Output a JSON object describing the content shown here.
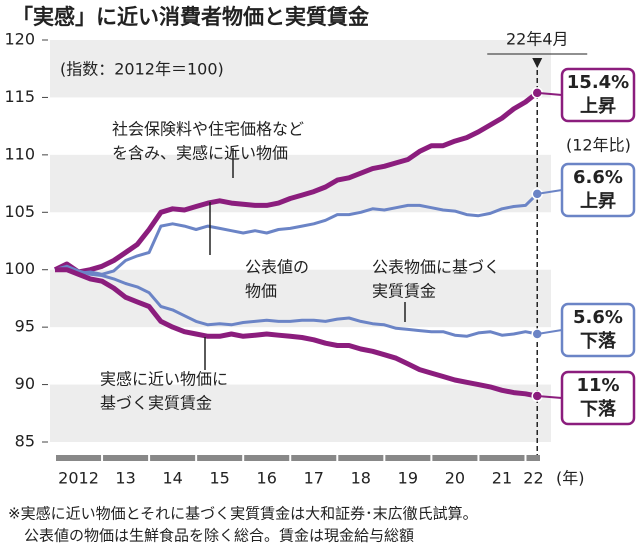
{
  "chart_data": {
    "type": "line",
    "title": "「実感」に近い消費者物価と実質賃金",
    "subtitle": "(指数：2012年＝100)",
    "x": [
      2012,
      2012.25,
      2012.5,
      2012.75,
      2013,
      2013.25,
      2013.5,
      2013.75,
      2014,
      2014.25,
      2014.5,
      2014.75,
      2015,
      2015.25,
      2015.5,
      2015.75,
      2016,
      2016.25,
      2016.5,
      2016.75,
      2017,
      2017.25,
      2017.5,
      2017.75,
      2018,
      2018.25,
      2018.5,
      2018.75,
      2019,
      2019.25,
      2019.5,
      2019.75,
      2020,
      2020.25,
      2020.5,
      2020.75,
      2021,
      2021.25,
      2021.5,
      2021.75,
      2022,
      2022.25
    ],
    "xlim": [
      2012,
      2022.33
    ],
    "xticks": [
      {
        "value": 2012.5,
        "label": "2012"
      },
      {
        "value": 2013.5,
        "label": "13"
      },
      {
        "value": 2014.5,
        "label": "14"
      },
      {
        "value": 2015.5,
        "label": "15"
      },
      {
        "value": 2016.5,
        "label": "16"
      },
      {
        "value": 2017.5,
        "label": "17"
      },
      {
        "value": 2018.5,
        "label": "18"
      },
      {
        "value": 2019.5,
        "label": "19"
      },
      {
        "value": 2020.5,
        "label": "20"
      },
      {
        "value": 2021.5,
        "label": "21"
      },
      {
        "value": 2022.17,
        "label": "22"
      }
    ],
    "x_unit": "(年)",
    "ylim": [
      85,
      120
    ],
    "yticks": [
      85,
      90,
      95,
      100,
      105,
      110,
      115,
      120
    ],
    "grid": "bands",
    "marker": {
      "x": 2022.25,
      "label": "22年4月"
    },
    "base_note": "(12年比)",
    "series": [
      {
        "color": "#8b1d7d",
        "label": [
          "社会保険料や住宅価格など",
          "を含み、実感に近い物価"
        ],
        "end_label": [
          "15.4%",
          "上昇"
        ],
        "values": [
          100,
          100.5,
          99.8,
          100,
          100.3,
          100.8,
          101.5,
          102.2,
          103.5,
          105,
          105.3,
          105.2,
          105.5,
          105.8,
          106,
          105.8,
          105.7,
          105.6,
          105.6,
          105.8,
          106.2,
          106.5,
          106.8,
          107.2,
          107.8,
          108,
          108.4,
          108.8,
          109,
          109.3,
          109.6,
          110.3,
          110.8,
          110.8,
          111.2,
          111.5,
          112,
          112.6,
          113.2,
          114,
          114.6,
          115.4
        ]
      },
      {
        "color": "#6b84c6",
        "label": [
          "公表値の",
          "物価"
        ],
        "end_label": [
          "6.6%",
          "上昇"
        ],
        "values": [
          100,
          100,
          99.7,
          99.8,
          99.6,
          99.9,
          100.8,
          101.2,
          101.5,
          103.8,
          104,
          103.8,
          103.5,
          103.8,
          103.6,
          103.4,
          103.2,
          103.4,
          103.2,
          103.5,
          103.6,
          103.8,
          104,
          104.3,
          104.8,
          104.8,
          105,
          105.3,
          105.2,
          105.4,
          105.6,
          105.6,
          105.4,
          105.2,
          105.1,
          104.8,
          104.7,
          104.9,
          105.3,
          105.5,
          105.6,
          106.6
        ]
      },
      {
        "color": "#6b84c6",
        "label": [
          "公表物価に基づく",
          "実質賃金"
        ],
        "end_label": [
          "5.6%",
          "下落"
        ],
        "values": [
          100,
          100.3,
          99.9,
          99.6,
          99.5,
          99.2,
          98.8,
          98.5,
          98,
          96.8,
          96.5,
          96,
          95.5,
          95.2,
          95.3,
          95.2,
          95.4,
          95.5,
          95.6,
          95.5,
          95.5,
          95.6,
          95.6,
          95.5,
          95.7,
          95.8,
          95.5,
          95.3,
          95.2,
          94.9,
          94.8,
          94.7,
          94.6,
          94.6,
          94.3,
          94.2,
          94.5,
          94.6,
          94.3,
          94.4,
          94.6,
          94.4
        ]
      },
      {
        "color": "#8b1d7d",
        "label": [
          "実感に近い物価に",
          "基づく実質賃金"
        ],
        "end_label": [
          "11%",
          "下落"
        ],
        "values": [
          100,
          100,
          99.6,
          99.2,
          99,
          98.4,
          97.6,
          97.2,
          96.8,
          95.5,
          95,
          94.6,
          94.4,
          94.2,
          94.2,
          94.4,
          94.2,
          94.3,
          94.4,
          94.3,
          94.2,
          94.1,
          93.9,
          93.6,
          93.4,
          93.4,
          93.1,
          92.9,
          92.6,
          92.3,
          91.8,
          91.3,
          91,
          90.7,
          90.4,
          90.2,
          90,
          89.8,
          89.5,
          89.3,
          89.2,
          89
        ]
      }
    ],
    "footnote": [
      "※実感に近い物価とそれに基づく実質賃金は大和証券･末広徹氏試算。",
      "公表値の物価は生鮮食品を除く総合。賃金は現金給与総額"
    ]
  }
}
